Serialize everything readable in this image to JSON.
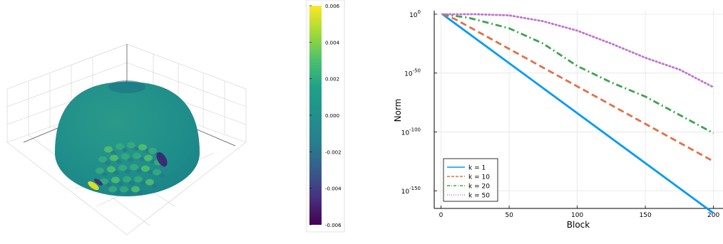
{
  "chart_data": [
    {
      "type": "surface",
      "colormap": "viridis",
      "colorbar": {
        "min": -0.006,
        "max": 0.006,
        "tick_labels": [
          "0.006",
          "0.004",
          "0.002",
          "0.000",
          "-0.002",
          "-0.004",
          "-0.006"
        ],
        "tick_values": [
          0.006,
          0.004,
          0.002,
          0.0,
          -0.002,
          -0.004,
          -0.006
        ]
      },
      "grid": true
    },
    {
      "type": "line",
      "xlabel": "Block",
      "ylabel": "Norm",
      "yscale": "log10",
      "xlim": [
        -5,
        207
      ],
      "ylim": [
        -165,
        3
      ],
      "x_ticks": [
        0,
        50,
        100,
        150,
        200
      ],
      "x_tick_labels": [
        "0",
        "50",
        "100",
        "150",
        "200"
      ],
      "y_ticks": [
        0,
        -50,
        -100,
        -150
      ],
      "y_tick_labels": [
        {
          "base": "10",
          "exp": "0"
        },
        {
          "base": "10",
          "exp": "-50"
        },
        {
          "base": "10",
          "exp": "-100"
        },
        {
          "base": "10",
          "exp": "-150"
        }
      ],
      "grid": true,
      "legend": "bottom-left",
      "series": [
        {
          "name": "k = 1",
          "color": "#009AFA",
          "style": "solid",
          "x": [
            1,
            200
          ],
          "y": [
            0,
            -169
          ]
        },
        {
          "name": "k = 10",
          "color": "#E36F47",
          "style": "dash",
          "x": [
            1,
            10,
            200
          ],
          "y": [
            0,
            -4,
            -125
          ]
        },
        {
          "name": "k = 20",
          "color": "#3EA44E",
          "style": "dashdot",
          "x": [
            1,
            20,
            50,
            75,
            100,
            125,
            150,
            200
          ],
          "y": [
            0,
            -3,
            -12,
            -25,
            -44,
            -58,
            -70,
            -101
          ]
        },
        {
          "name": "k = 50",
          "color": "#C271D2",
          "style": "dot",
          "x": [
            1,
            25,
            50,
            75,
            100,
            125,
            150,
            175,
            200
          ],
          "y": [
            0,
            0,
            -1,
            -6,
            -14,
            -25,
            -37,
            -47,
            -62
          ]
        }
      ]
    }
  ]
}
